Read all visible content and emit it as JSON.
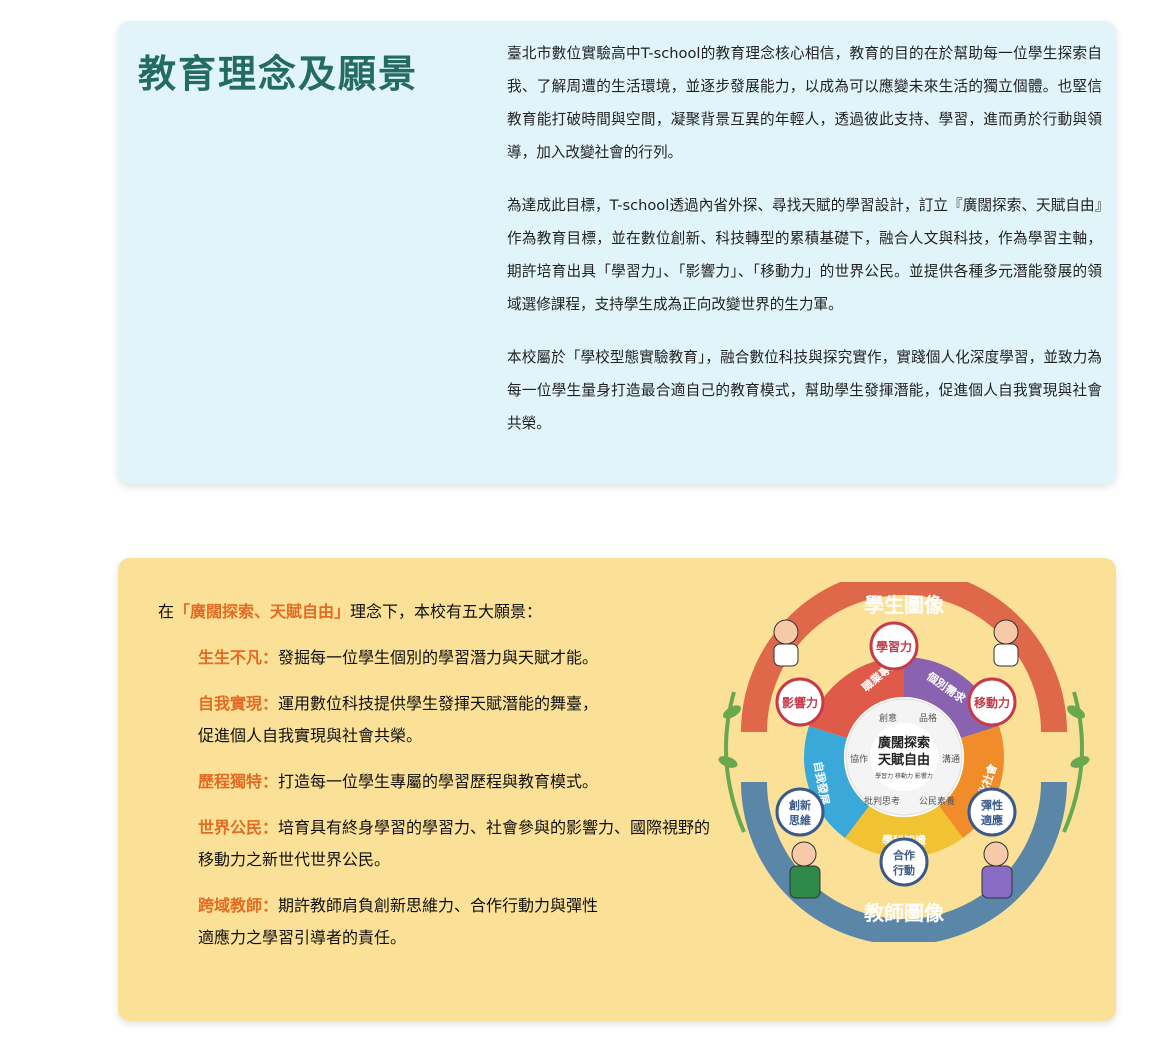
{
  "intro": {
    "title": "教育理念及願景",
    "paragraphs": [
      "臺北市數位實驗高中T-school的教育理念核心相信，教育的目的在於幫助每一位學生探索自我、了解周遭的生活環境，並逐步發展能力，以成為可以應變未來生活的獨立個體。也堅信教育能打破時間與空間，凝聚背景互異的年輕人，透過彼此支持、學習，進而勇於行動與領導，加入改變社會的行列。",
      "為達成此目標，T-school透過內省外探、尋找天賦的學習設計，訂立『廣闊探索、天賦自由』作為教育目標，並在數位創新、科技轉型的累積基礎下，融合人文與科技，作為學習主軸，期許培育出具「學習力」、「影響力」、「移動力」的世界公民。並提供各種多元潛能發展的領域選修課程，支持學生成為正向改變世界的生力軍。",
      "本校屬於「學校型態實驗教育」，融合數位科技與探究實作，實踐個人化深度學習，並致力為每一位學生量身打造最合適自己的教育模式，幫助學生發揮潛能，促進個人自我實現與社會共榮。"
    ]
  },
  "vision": {
    "lead_prefix": "在",
    "lead_highlight": "「廣闊探索、天賦自由」",
    "lead_suffix": "理念下，本校有五大願景：",
    "items": [
      {
        "key": "生生不凡：",
        "text": "發掘每一位學生個別的學習潛力與天賦才能。"
      },
      {
        "key": "自我實現：",
        "text": "運用數位科技提供學生發揮天賦潛能的舞臺，",
        "text2": "促進個人自我實現與社會共榮。"
      },
      {
        "key": "歷程獨特：",
        "text": "打造每一位學生專屬的學習歷程與教育模式。"
      },
      {
        "key": "世界公民：",
        "text": "培育具有終身學習的學習力、社會參與的影響力、國際視野的移動力之新世代世界公民。"
      },
      {
        "key": "跨域教師：",
        "text": "期許教師肩負創新思維力、合作行動力與彈性",
        "text2": "適應力之學習引導者的責任。"
      }
    ]
  },
  "diagram": {
    "top_banner": "學生圖像",
    "bottom_banner": "教師圖像",
    "center_line1": "廣闊探索",
    "center_line2": "天賦自由",
    "center_sub": "學習力 移動力 影響力",
    "nodes": {
      "learning": "學習力",
      "influence": "影響力",
      "mobility": "移動力",
      "innovative_1": "創新",
      "innovative_2": "思維",
      "resilience_1": "彈性",
      "resilience_2": "適應",
      "cooperation_1": "合作",
      "cooperation_2": "行動"
    },
    "ring_labels": {
      "career": "職業專題",
      "individual": "個別需求",
      "self_dev": "自我發展",
      "culture": "文化社會",
      "subject": "學科知識"
    },
    "inner_labels": {
      "creativity": "創意",
      "character": "品格",
      "collaboration": "協作",
      "communication": "溝通",
      "critical": "批判思考",
      "citizenship": "公民素養"
    },
    "colors": {
      "banner_top": "#e0684a",
      "banner_bottom": "#5a86a8",
      "career": "#e05a4a",
      "individual": "#8a63b0",
      "self_dev": "#3aa8d8",
      "culture": "#f08c2a",
      "subject": "#f1c232",
      "node_ring": "#c63b4a",
      "node_ring_blue": "#3b5a8c",
      "leaf": "#6aa84f"
    }
  }
}
